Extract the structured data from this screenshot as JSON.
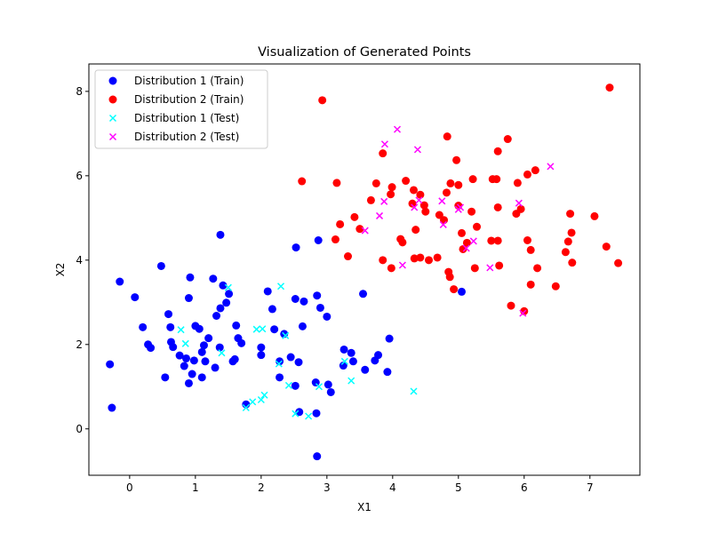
{
  "chart_data": {
    "type": "scatter",
    "title": "Visualization of Generated Points",
    "xlabel": "X1",
    "ylabel": "X2",
    "xlim": [
      -0.62,
      7.76
    ],
    "ylim": [
      -1.1,
      8.65
    ],
    "xticks": [
      "0",
      "1",
      "2",
      "3",
      "4",
      "5",
      "6",
      "7"
    ],
    "yticks": [
      "0",
      "2",
      "4",
      "6",
      "8"
    ],
    "grid": false,
    "legend_position": "top-left",
    "series": [
      {
        "name": "Distribution 1 (Train)",
        "marker": "circle",
        "color": "#0000ff",
        "points": [
          [
            -0.3,
            1.53
          ],
          [
            -0.27,
            0.5
          ],
          [
            -0.15,
            3.49
          ],
          [
            0.08,
            3.12
          ],
          [
            0.2,
            2.41
          ],
          [
            0.28,
            2.0
          ],
          [
            0.32,
            1.92
          ],
          [
            0.48,
            3.86
          ],
          [
            0.54,
            1.22
          ],
          [
            0.59,
            2.72
          ],
          [
            0.62,
            2.41
          ],
          [
            0.63,
            2.06
          ],
          [
            0.66,
            1.94
          ],
          [
            0.76,
            1.74
          ],
          [
            0.83,
            1.49
          ],
          [
            0.86,
            1.67
          ],
          [
            0.9,
            1.08
          ],
          [
            0.9,
            3.1
          ],
          [
            0.92,
            3.59
          ],
          [
            0.95,
            1.3
          ],
          [
            0.98,
            1.62
          ],
          [
            1.0,
            2.44
          ],
          [
            1.06,
            2.37
          ],
          [
            1.1,
            1.82
          ],
          [
            1.1,
            1.22
          ],
          [
            1.13,
            1.98
          ],
          [
            1.15,
            1.6
          ],
          [
            1.2,
            2.15
          ],
          [
            1.27,
            3.56
          ],
          [
            1.3,
            1.45
          ],
          [
            1.32,
            2.68
          ],
          [
            1.37,
            1.93
          ],
          [
            1.38,
            4.6
          ],
          [
            1.38,
            2.86
          ],
          [
            1.42,
            3.4
          ],
          [
            1.47,
            2.99
          ],
          [
            1.51,
            3.2
          ],
          [
            1.57,
            1.6
          ],
          [
            1.6,
            1.65
          ],
          [
            1.62,
            2.45
          ],
          [
            1.65,
            2.15
          ],
          [
            1.7,
            2.03
          ],
          [
            1.77,
            0.58
          ],
          [
            2.0,
            1.93
          ],
          [
            2.0,
            1.75
          ],
          [
            2.1,
            3.26
          ],
          [
            2.17,
            2.84
          ],
          [
            2.2,
            2.36
          ],
          [
            2.28,
            1.6
          ],
          [
            2.28,
            1.22
          ],
          [
            2.35,
            2.25
          ],
          [
            2.45,
            1.7
          ],
          [
            2.52,
            1.02
          ],
          [
            2.52,
            3.08
          ],
          [
            2.53,
            4.3
          ],
          [
            2.57,
            1.58
          ],
          [
            2.58,
            0.4
          ],
          [
            2.63,
            2.43
          ],
          [
            2.65,
            3.02
          ],
          [
            2.83,
            1.1
          ],
          [
            2.84,
            0.37
          ],
          [
            2.85,
            3.16
          ],
          [
            2.87,
            4.47
          ],
          [
            2.9,
            2.87
          ],
          [
            3.0,
            2.66
          ],
          [
            3.02,
            1.05
          ],
          [
            3.06,
            0.87
          ],
          [
            3.25,
            1.5
          ],
          [
            3.26,
            1.88
          ],
          [
            3.37,
            1.8
          ],
          [
            3.4,
            1.6
          ],
          [
            3.55,
            3.2
          ],
          [
            3.58,
            1.4
          ],
          [
            3.73,
            1.62
          ],
          [
            3.78,
            1.75
          ],
          [
            3.92,
            1.35
          ],
          [
            3.95,
            2.14
          ],
          [
            5.05,
            3.25
          ],
          [
            2.85,
            -0.65
          ]
        ]
      },
      {
        "name": "Distribution 2 (Train)",
        "marker": "circle",
        "color": "#ff0000",
        "points": [
          [
            2.62,
            5.87
          ],
          [
            2.93,
            7.79
          ],
          [
            3.13,
            4.49
          ],
          [
            3.15,
            5.83
          ],
          [
            3.2,
            4.85
          ],
          [
            3.32,
            4.09
          ],
          [
            3.42,
            5.02
          ],
          [
            3.5,
            4.74
          ],
          [
            3.67,
            5.42
          ],
          [
            3.75,
            5.82
          ],
          [
            3.85,
            6.53
          ],
          [
            3.85,
            4.0
          ],
          [
            3.97,
            5.56
          ],
          [
            3.98,
            3.81
          ],
          [
            3.99,
            5.73
          ],
          [
            4.12,
            4.5
          ],
          [
            4.15,
            4.42
          ],
          [
            4.2,
            5.88
          ],
          [
            4.3,
            5.34
          ],
          [
            4.32,
            5.66
          ],
          [
            4.33,
            4.04
          ],
          [
            4.35,
            4.72
          ],
          [
            4.42,
            5.55
          ],
          [
            4.42,
            4.06
          ],
          [
            4.48,
            5.3
          ],
          [
            4.5,
            5.15
          ],
          [
            4.55,
            4.0
          ],
          [
            4.68,
            4.06
          ],
          [
            4.71,
            5.07
          ],
          [
            4.78,
            4.95
          ],
          [
            4.82,
            5.6
          ],
          [
            4.83,
            6.93
          ],
          [
            4.85,
            3.72
          ],
          [
            4.87,
            3.6
          ],
          [
            4.88,
            5.82
          ],
          [
            4.93,
            3.31
          ],
          [
            4.97,
            6.37
          ],
          [
            5.0,
            5.78
          ],
          [
            5.0,
            5.29
          ],
          [
            5.05,
            4.64
          ],
          [
            5.07,
            4.26
          ],
          [
            5.13,
            4.41
          ],
          [
            5.2,
            5.15
          ],
          [
            5.22,
            5.92
          ],
          [
            5.25,
            3.81
          ],
          [
            5.28,
            4.79
          ],
          [
            5.5,
            4.46
          ],
          [
            5.52,
            5.92
          ],
          [
            5.58,
            5.92
          ],
          [
            5.6,
            6.58
          ],
          [
            5.6,
            5.25
          ],
          [
            5.62,
            3.87
          ],
          [
            5.75,
            6.87
          ],
          [
            5.8,
            2.92
          ],
          [
            5.88,
            5.1
          ],
          [
            5.9,
            5.83
          ],
          [
            5.95,
            5.21
          ],
          [
            6.0,
            2.79
          ],
          [
            6.05,
            4.47
          ],
          [
            6.05,
            6.03
          ],
          [
            6.1,
            3.42
          ],
          [
            6.1,
            4.24
          ],
          [
            6.17,
            6.13
          ],
          [
            6.2,
            3.81
          ],
          [
            6.48,
            3.38
          ],
          [
            6.63,
            4.19
          ],
          [
            6.67,
            4.44
          ],
          [
            6.7,
            5.1
          ],
          [
            6.72,
            4.65
          ],
          [
            6.73,
            3.94
          ],
          [
            7.07,
            5.04
          ],
          [
            7.25,
            4.32
          ],
          [
            7.3,
            8.09
          ],
          [
            7.43,
            3.93
          ],
          [
            5.6,
            4.46
          ]
        ]
      },
      {
        "name": "Distribution 1 (Test)",
        "marker": "x",
        "color": "#00ffff",
        "points": [
          [
            0.78,
            2.35
          ],
          [
            0.85,
            2.02
          ],
          [
            1.4,
            1.8
          ],
          [
            1.5,
            3.35
          ],
          [
            1.77,
            0.5
          ],
          [
            1.87,
            0.64
          ],
          [
            1.93,
            2.36
          ],
          [
            2.0,
            0.69
          ],
          [
            2.02,
            2.37
          ],
          [
            2.05,
            0.8
          ],
          [
            2.27,
            1.54
          ],
          [
            2.3,
            3.38
          ],
          [
            2.37,
            2.21
          ],
          [
            2.42,
            1.03
          ],
          [
            2.52,
            0.36
          ],
          [
            2.72,
            0.3
          ],
          [
            2.88,
            1.0
          ],
          [
            3.27,
            1.6
          ],
          [
            3.37,
            1.14
          ],
          [
            4.32,
            0.89
          ]
        ]
      },
      {
        "name": "Distribution 2 (Test)",
        "marker": "x",
        "color": "#ff00ff",
        "points": [
          [
            3.58,
            4.7
          ],
          [
            3.8,
            5.05
          ],
          [
            3.87,
            5.39
          ],
          [
            3.88,
            6.75
          ],
          [
            4.07,
            7.1
          ],
          [
            4.15,
            3.88
          ],
          [
            4.33,
            5.25
          ],
          [
            4.38,
            6.62
          ],
          [
            4.4,
            5.42
          ],
          [
            4.75,
            5.4
          ],
          [
            4.77,
            4.84
          ],
          [
            5.0,
            5.2
          ],
          [
            5.03,
            5.25
          ],
          [
            5.12,
            4.28
          ],
          [
            5.23,
            4.45
          ],
          [
            5.48,
            3.82
          ],
          [
            5.92,
            5.35
          ],
          [
            5.98,
            2.74
          ],
          [
            6.4,
            6.22
          ]
        ]
      }
    ]
  }
}
